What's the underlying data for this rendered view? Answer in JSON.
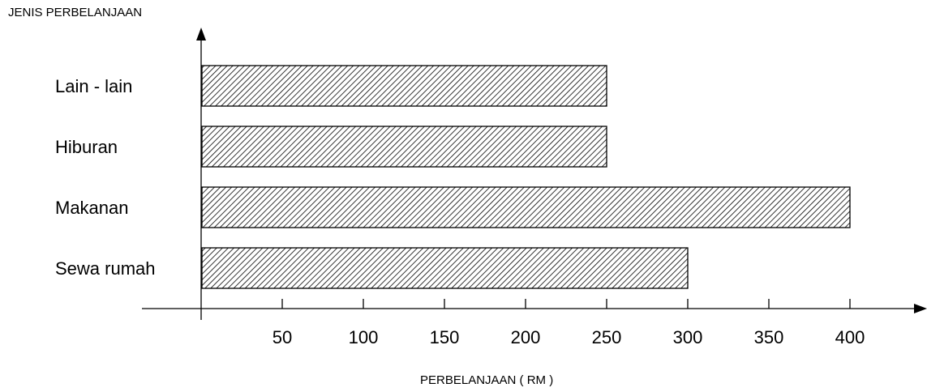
{
  "chart_data": {
    "type": "bar",
    "orientation": "horizontal",
    "ylabel": "JENIS PERBELANJAAN",
    "xlabel": "PERBELANJAAN (  RM )",
    "categories": [
      "Sewa rumah",
      "Makanan",
      "Hiburan",
      "Lain - lain"
    ],
    "values": [
      300,
      400,
      250,
      250
    ],
    "xticks": [
      50,
      100,
      150,
      200,
      250,
      300,
      350,
      400
    ],
    "xlim": [
      0,
      440
    ],
    "grid": false,
    "bar_fill": "diagonal-hatch",
    "bar_color": "#000000"
  }
}
